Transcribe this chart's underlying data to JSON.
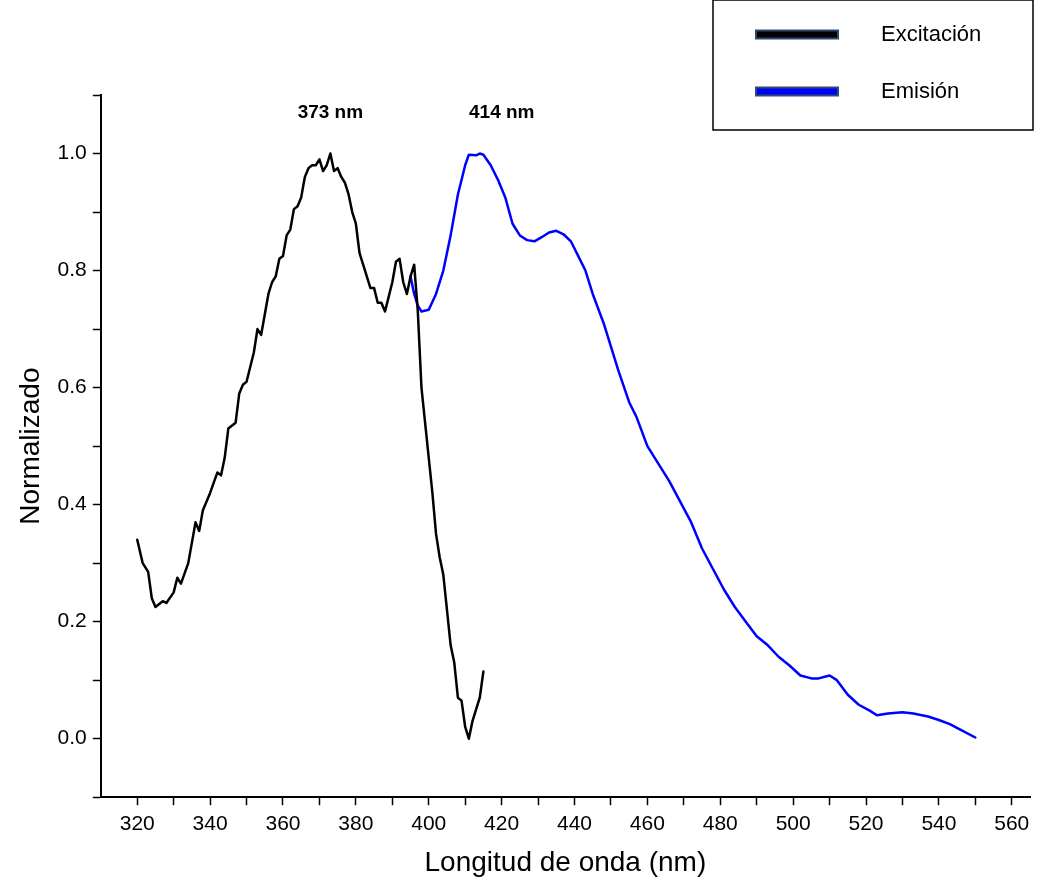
{
  "chart_data": {
    "type": "line",
    "xlabel": "Longitud de onda (nm)",
    "ylabel": "Normalizado",
    "xlim": [
      310,
      565
    ],
    "ylim": [
      -0.1,
      1.1
    ],
    "xticks": [
      {
        "value": 320,
        "label": "320"
      },
      {
        "value": 330,
        "label": null
      },
      {
        "value": 340,
        "label": "340"
      },
      {
        "value": 350,
        "label": null
      },
      {
        "value": 360,
        "label": "360"
      },
      {
        "value": 370,
        "label": null
      },
      {
        "value": 380,
        "label": "380"
      },
      {
        "value": 390,
        "label": null
      },
      {
        "value": 400,
        "label": "400"
      },
      {
        "value": 410,
        "label": null
      },
      {
        "value": 420,
        "label": "420"
      },
      {
        "value": 430,
        "label": null
      },
      {
        "value": 440,
        "label": "440"
      },
      {
        "value": 450,
        "label": null
      },
      {
        "value": 460,
        "label": "460"
      },
      {
        "value": 470,
        "label": null
      },
      {
        "value": 480,
        "label": "480"
      },
      {
        "value": 490,
        "label": null
      },
      {
        "value": 500,
        "label": "500"
      },
      {
        "value": 510,
        "label": null
      },
      {
        "value": 520,
        "label": "520"
      },
      {
        "value": 530,
        "label": null
      },
      {
        "value": 540,
        "label": "540"
      },
      {
        "value": 550,
        "label": null
      },
      {
        "value": 560,
        "label": "560"
      }
    ],
    "yticks": [
      {
        "value": -0.1,
        "label": null
      },
      {
        "value": 0,
        "label": "0.0"
      },
      {
        "value": 0.1,
        "label": null
      },
      {
        "value": 0.2,
        "label": "0.2"
      },
      {
        "value": 0.3,
        "label": null
      },
      {
        "value": 0.4,
        "label": "0.4"
      },
      {
        "value": 0.5,
        "label": null
      },
      {
        "value": 0.6,
        "label": "0.6"
      },
      {
        "value": 0.7,
        "label": null
      },
      {
        "value": 0.8,
        "label": "0.8"
      },
      {
        "value": 0.9,
        "label": null
      },
      {
        "value": 1.0,
        "label": "1.0"
      },
      {
        "value": 1.1,
        "label": null
      }
    ],
    "grid": false,
    "legend": "top right",
    "marker": "none",
    "line_style": "solid",
    "annotations": [
      "373 nm",
      "414 nm"
    ],
    "series": [
      {
        "name": "Excitación",
        "color": "#000000",
        "x": [
          320,
          321.5,
          323,
          324,
          325,
          327,
          328,
          330,
          331,
          332,
          334,
          336,
          337,
          338,
          340,
          342,
          343,
          344,
          345,
          347,
          348,
          349,
          350,
          352,
          353,
          354,
          356,
          357,
          358,
          359,
          360,
          361,
          362,
          363,
          364,
          365,
          366,
          367,
          368,
          369,
          370,
          371,
          372,
          373,
          374,
          375,
          376,
          377,
          378,
          379,
          380,
          381,
          382,
          383,
          384,
          385,
          386,
          387,
          388,
          389,
          390,
          391,
          392,
          393,
          394,
          395,
          396,
          397,
          398,
          400,
          401,
          402,
          403,
          404,
          405,
          406,
          407,
          408,
          409,
          410,
          411,
          412,
          413,
          414,
          415
        ],
        "values": [
          0.34,
          0.3,
          0.285,
          0.24,
          0.225,
          0.235,
          0.232,
          0.25,
          0.275,
          0.265,
          0.3,
          0.37,
          0.355,
          0.39,
          0.42,
          0.455,
          0.45,
          0.48,
          0.53,
          0.54,
          0.59,
          0.605,
          0.61,
          0.66,
          0.7,
          0.69,
          0.76,
          0.78,
          0.79,
          0.82,
          0.825,
          0.86,
          0.87,
          0.905,
          0.91,
          0.925,
          0.96,
          0.975,
          0.98,
          0.98,
          0.99,
          0.97,
          0.98,
          1.0,
          0.97,
          0.975,
          0.96,
          0.95,
          0.93,
          0.9,
          0.88,
          0.83,
          0.81,
          0.79,
          0.77,
          0.77,
          0.745,
          0.745,
          0.73,
          0.755,
          0.78,
          0.815,
          0.82,
          0.78,
          0.76,
          0.79,
          0.81,
          0.73,
          0.6,
          0.48,
          0.42,
          0.35,
          0.31,
          0.28,
          0.22,
          0.16,
          0.13,
          0.07,
          0.065,
          0.02,
          0.0,
          0.03,
          0.05,
          0.07,
          0.115
        ]
      },
      {
        "name": "Emisión",
        "color": "#0000ff",
        "x": [
          395,
          396,
          397,
          398,
          400,
          402,
          404,
          406,
          408,
          410,
          411,
          413,
          414,
          415,
          417,
          419,
          421,
          423,
          425,
          427,
          429,
          431,
          433,
          435,
          437,
          439,
          441,
          443,
          445,
          448,
          450,
          452,
          455,
          457,
          460,
          463,
          466,
          469,
          472,
          475,
          478,
          481,
          484,
          487,
          490,
          493,
          496,
          499,
          502,
          505,
          507,
          510,
          512,
          515,
          518,
          521,
          523,
          526,
          530,
          533,
          537,
          540,
          543,
          546,
          550
        ],
        "values": [
          0.79,
          0.76,
          0.74,
          0.73,
          0.733,
          0.76,
          0.8,
          0.86,
          0.93,
          0.98,
          0.998,
          0.997,
          1.0,
          0.998,
          0.98,
          0.955,
          0.925,
          0.88,
          0.86,
          0.852,
          0.85,
          0.857,
          0.865,
          0.868,
          0.862,
          0.85,
          0.825,
          0.8,
          0.76,
          0.71,
          0.67,
          0.63,
          0.575,
          0.55,
          0.5,
          0.47,
          0.44,
          0.405,
          0.37,
          0.325,
          0.29,
          0.255,
          0.225,
          0.2,
          0.175,
          0.16,
          0.14,
          0.125,
          0.108,
          0.103,
          0.103,
          0.108,
          0.1,
          0.075,
          0.058,
          0.048,
          0.04,
          0.043,
          0.045,
          0.043,
          0.038,
          0.032,
          0.025,
          0.015,
          0.002
        ]
      }
    ]
  }
}
